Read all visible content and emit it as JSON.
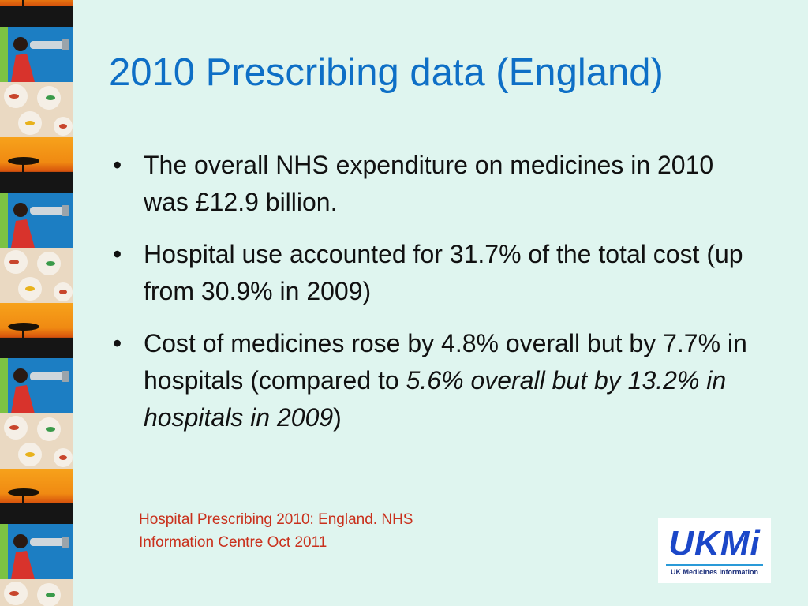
{
  "slide": {
    "title": "2010 Prescribing data (England)",
    "bullets": [
      {
        "pre": "The overall NHS expenditure on medicines in 2010 was £12.9 billion.",
        "italic": "",
        "post": ""
      },
      {
        "pre": "Hospital use accounted for 31.7% of the total cost (up from 30.9% in 2009)",
        "italic": "",
        "post": ""
      },
      {
        "pre": "Cost of medicines rose by 4.8% overall but by 7.7% in hospitals (compared to ",
        "italic": "5.6% overall but by 13.2% in hospitals in 2009",
        "post": ")"
      }
    ],
    "bullet_symbol": "•",
    "source_line1": "Hospital Prescribing 2010: England. NHS",
    "source_line2": "Information Centre Oct 2011",
    "logo": {
      "word": "UKMi",
      "caption": "UK Medicines Information"
    },
    "strip_tiles": [
      "sunset",
      "photo",
      "pills",
      "sunset",
      "photo",
      "pills",
      "sunset",
      "photo",
      "pills",
      "sunset",
      "photo",
      "pills"
    ]
  },
  "colors": {
    "background": "#dff5ef",
    "title": "#0e6fc6",
    "body_text": "#111111",
    "source_text": "#c9301c",
    "logo_blue": "#1b47c8"
  }
}
